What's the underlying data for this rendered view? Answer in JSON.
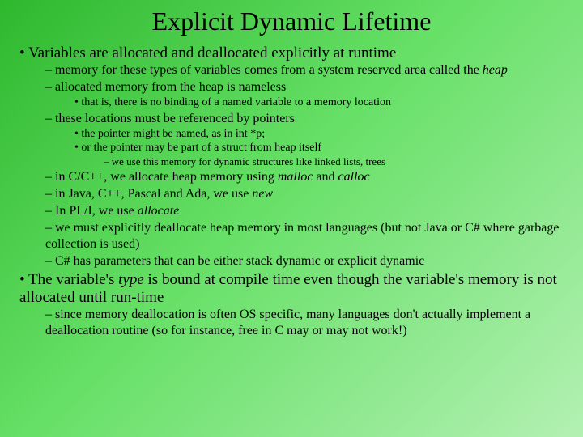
{
  "title": "Explicit Dynamic Lifetime",
  "b1": "Variables are allocated and deallocated explicitly at runtime",
  "b1a_pre": "memory for these types of variables comes from a system reserved area called the ",
  "b1a_it": "heap",
  "b1b": "allocated memory from the heap is nameless",
  "b1b1": "that is, there is no binding of a named variable to a memory location",
  "b1c": "these locations must be referenced by pointers",
  "b1c1": "the pointer might be named, as in int *p;",
  "b1c2": "or the pointer may be part of a struct from heap itself",
  "b1c2a": "we use this memory for dynamic structures like linked lists, trees",
  "b1d_pre": "in C/C++, we allocate heap memory using ",
  "b1d_it1": "malloc",
  "b1d_mid": " and ",
  "b1d_it2": "calloc",
  "b1e_pre": "in Java, C++, Pascal and Ada, we use ",
  "b1e_it": "new",
  "b1f_pre": "In PL/I, we use ",
  "b1f_it": "allocate",
  "b1g": "we must explicitly deallocate heap memory in most languages (but not Java or C# where garbage collection is used)",
  "b1h": "C# has parameters that can be either stack dynamic or explicit dynamic",
  "b2_pre": "The variable's ",
  "b2_it": "type",
  "b2_mid": " is bound at compile time even though the variable's memory is not ",
  "b2_u": "allocated",
  "b2_post": " until run-time",
  "b2a": "since memory deallocation is often OS specific, many languages don't actually implement a deallocation routine (so for instance, free in C may or may not work!)"
}
